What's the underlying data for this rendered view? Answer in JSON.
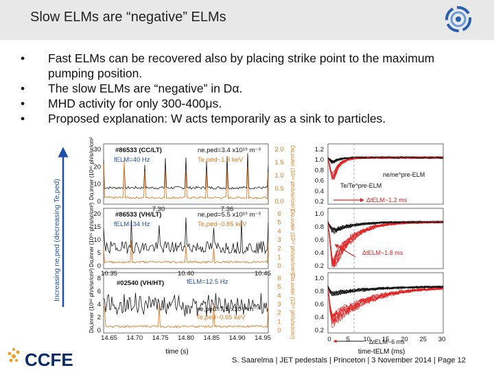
{
  "slide": {
    "title": "Slow ELMs are “negative” ELMs",
    "bullets": [
      "Fast ELMs can be recovered also by placing strike point to the maximum pumping position.",
      "The slow ELMs are “negative” in Dα.",
      "MHD activity for only 300-400μs.",
      "Proposed explanation: W acts temporarily as a sink to particles."
    ],
    "footer": "S. Saarelma | JET pedestals | Princeton | 3 November 2014 | Page 12"
  },
  "figure": {
    "vertical_label": "Increasing ne,ped (decreasing Te,ped)",
    "x_label_left": "time (s)",
    "x_label_right": "time-tELM (ms)",
    "panels": [
      {
        "shot": "#86533 (CC/LT)",
        "freq": "fELM=40 Hz",
        "ne": "ne,ped=3.4 x10¹⁹ m⁻³",
        "te": "Te,ped~1.3 keV",
        "left_ylabel": "Dα,inner (10¹⁶ ph/s/sr/cm²)",
        "right_ylabel": "Dα,outer (10¹⁶ ph/s/sr/cm²)",
        "left_ticks": [
          "0",
          "10",
          "20",
          "30"
        ],
        "right_ticks": [
          "0.0",
          "0.5",
          "1.0",
          "1.5",
          "2.0"
        ],
        "time_ticks": [
          "7.30",
          "7.36"
        ],
        "norm_ticks": [
          "0.2",
          "0.4",
          "0.6",
          "0.8",
          "1.0",
          "1.2"
        ],
        "annot_norm": "ne/ne^pre-ELM",
        "annot_te": "Te/Te^pre-ELM",
        "annot_dt": "ΔtELM~1.2 ms"
      },
      {
        "shot": "#86533 (VH/LT)",
        "freq": "fELM=34 Hz",
        "ne": "ne,ped=5.5 x10¹⁹ m⁻³",
        "te": "Te,ped~0.85 keV",
        "left_ylabel": "Dα,inner (10¹⁶ ph/s/sr/cm²)",
        "right_ylabel": "Dα,outer (10¹⁶ ph/s/sr/cm²)",
        "left_ticks": [
          "0",
          "5",
          "10",
          "15",
          "20"
        ],
        "right_ticks": [
          "0",
          "1",
          "2",
          "3",
          "4",
          "5",
          "6"
        ],
        "time_ticks": [
          "10.35",
          "10.40",
          "10.45"
        ],
        "norm_ticks": [
          "0.2",
          "0.4",
          "0.6",
          "0.8",
          "1.0"
        ],
        "annot_dt": "ΔtELM~1.8 ms"
      },
      {
        "shot": "#02540 (VH/HT)",
        "freq": "fELM=12.5 Hz",
        "ne": "ne,ped=7.5 x10¹⁹ m⁻³",
        "te": "Te,ped~0.65 keV",
        "left_ylabel": "Dα,inner (10¹⁶ ph/s/sr/cm²)",
        "right_ylabel": "Dα,outer (10¹⁶ ph/s/sr/cm²)",
        "left_ticks": [
          "0",
          "2",
          "4",
          "6",
          "8"
        ],
        "right_ticks": [
          "0",
          "1",
          "2",
          "3",
          "4",
          "5",
          "6"
        ],
        "time_ticks": [
          "14.65",
          "14.70",
          "14.75",
          "14.80",
          "14.85",
          "14.90",
          "14.95"
        ],
        "norm_ticks": [
          "0.2",
          "0.4",
          "0.6",
          "0.8",
          "1.0"
        ],
        "annot_dt": "ΔtELM~6 ms"
      }
    ],
    "norm_x_ticks": [
      "0",
      "5",
      "10",
      "15",
      "20",
      "25",
      "30"
    ]
  },
  "colors": {
    "header_bg": "#e8e8e8",
    "orange": "#e07b20",
    "red": "#e02020",
    "black": "#111111",
    "blue": "#1f4fa8"
  }
}
